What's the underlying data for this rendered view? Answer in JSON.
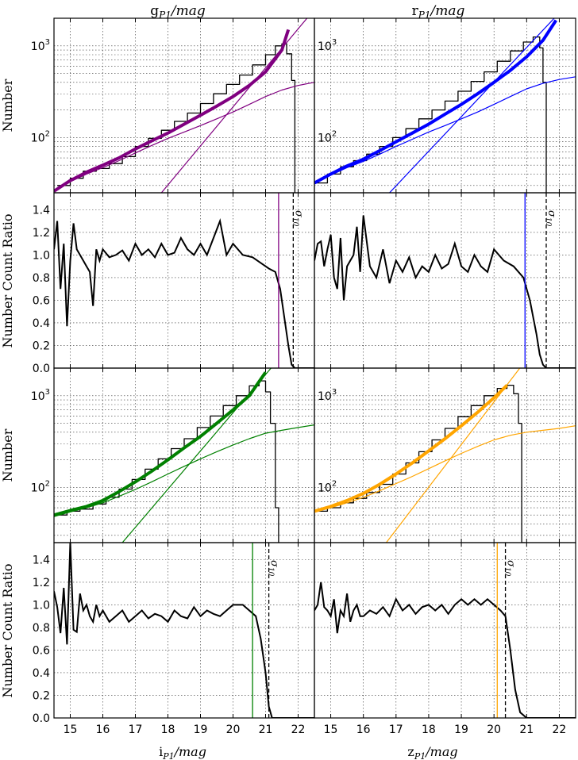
{
  "figure": {
    "col_titles": [
      {
        "main": "g",
        "sub": "P1",
        "unit": "/mag"
      },
      {
        "main": "r",
        "sub": "P1",
        "unit": "/mag"
      }
    ],
    "col_xlabels": [
      {
        "main": "i",
        "sub": "P1",
        "unit": "/mag"
      },
      {
        "main": "z",
        "sub": "P1",
        "unit": "/mag"
      }
    ],
    "ylabel_counts": "Number",
    "ylabel_ratio": "Number Count Ratio",
    "sigma_label": "σ",
    "sigma_sub": "10"
  },
  "chart_data": [
    {
      "type": "line",
      "band": "g",
      "scale": "log",
      "ylim": [
        25,
        2000
      ],
      "xlim": [
        14.5,
        22.5
      ],
      "x_ticks": [
        15,
        16,
        17,
        18,
        19,
        20,
        21,
        22
      ],
      "y_tick_labels": [
        "10^2",
        "10^3"
      ],
      "color": "#800080",
      "grid": true,
      "series": [
        {
          "style": "histogram",
          "color": "#000000",
          "x": [
            14.6,
            15.0,
            15.4,
            15.8,
            16.2,
            16.6,
            17.0,
            17.4,
            17.8,
            18.2,
            18.6,
            19.0,
            19.4,
            19.8,
            20.2,
            20.6,
            21.0,
            21.3,
            21.5,
            21.65,
            21.8,
            21.9
          ],
          "values": [
            30,
            36,
            43,
            46,
            52,
            62,
            80,
            98,
            120,
            150,
            185,
            235,
            300,
            380,
            480,
            620,
            800,
            1000,
            1050,
            820,
            420,
            20
          ]
        },
        {
          "style": "thick",
          "color": "#800080",
          "x": [
            14.5,
            15.0,
            15.5,
            16.0,
            16.5,
            17.0,
            17.5,
            18.0,
            18.5,
            19.0,
            19.5,
            20.0,
            20.5,
            21.0,
            21.5,
            21.7
          ],
          "values": [
            26,
            34,
            42,
            50,
            60,
            75,
            92,
            112,
            140,
            175,
            220,
            280,
            370,
            520,
            900,
            1500
          ]
        },
        {
          "style": "thin",
          "color": "#800080",
          "x": [
            14.5,
            15.0,
            15.5,
            16.0,
            16.5,
            17.0,
            17.5,
            18.0,
            18.5,
            19.0,
            19.5,
            20.0,
            20.5,
            21.0,
            21.5,
            22.0,
            22.5
          ],
          "values": [
            26,
            33,
            40,
            47,
            56,
            68,
            82,
            98,
            115,
            135,
            160,
            190,
            230,
            280,
            330,
            370,
            400
          ]
        },
        {
          "style": "thin",
          "color": "#800080",
          "x": [
            17.8,
            22.5
          ],
          "values": [
            25,
            2500
          ]
        }
      ]
    },
    {
      "type": "line",
      "band": "g",
      "ylim": [
        0,
        1.55
      ],
      "xlim": [
        14.5,
        22.5
      ],
      "y_ticks": [
        0.0,
        0.2,
        0.4,
        0.6,
        0.8,
        1.0,
        1.2,
        1.4
      ],
      "grid": true,
      "x": [
        14.5,
        14.6,
        14.7,
        14.8,
        14.9,
        15.0,
        15.1,
        15.2,
        15.3,
        15.4,
        15.5,
        15.6,
        15.7,
        15.8,
        15.9,
        16.0,
        16.2,
        16.4,
        16.6,
        16.8,
        17.0,
        17.2,
        17.4,
        17.6,
        17.8,
        18.0,
        18.2,
        18.4,
        18.6,
        18.8,
        19.0,
        19.2,
        19.4,
        19.6,
        19.8,
        20.0,
        20.3,
        20.6,
        20.9,
        21.1,
        21.3,
        21.45,
        21.6,
        21.7,
        21.8,
        21.9,
        22.0,
        22.5
      ],
      "values": [
        1.05,
        1.3,
        0.7,
        1.1,
        0.37,
        0.95,
        1.28,
        1.05,
        1.0,
        0.95,
        0.9,
        0.85,
        0.55,
        1.05,
        0.95,
        1.05,
        0.98,
        1.0,
        1.04,
        0.95,
        1.1,
        1.0,
        1.05,
        0.98,
        1.1,
        1.0,
        1.02,
        1.15,
        1.05,
        1.0,
        1.1,
        1.0,
        1.15,
        1.3,
        1.0,
        1.1,
        1.0,
        0.98,
        0.92,
        0.88,
        0.85,
        0.7,
        0.4,
        0.2,
        0.03,
        0.0,
        0.0,
        0.0
      ],
      "completeness_mag": 21.4,
      "sigma10_mag": 21.85,
      "completeness_color": "#800080"
    },
    {
      "type": "line",
      "band": "r",
      "scale": "log",
      "ylim": [
        25,
        2000
      ],
      "xlim": [
        14.5,
        22.5
      ],
      "x_ticks": [
        15,
        16,
        17,
        18,
        19,
        20,
        21,
        22
      ],
      "color": "#0000ff",
      "grid": true,
      "series": [
        {
          "style": "histogram",
          "color": "#000000",
          "x": [
            14.5,
            14.9,
            15.3,
            15.7,
            16.1,
            16.5,
            16.9,
            17.3,
            17.7,
            18.1,
            18.5,
            18.9,
            19.3,
            19.7,
            20.1,
            20.5,
            20.9,
            21.2,
            21.4,
            21.5,
            21.6
          ],
          "values": [
            32,
            40,
            48,
            56,
            66,
            80,
            100,
            125,
            160,
            200,
            250,
            320,
            410,
            520,
            680,
            880,
            1100,
            1250,
            950,
            400,
            20
          ]
        },
        {
          "style": "thick",
          "color": "#0000ff",
          "x": [
            14.5,
            15.0,
            15.5,
            16.0,
            16.5,
            17.0,
            17.5,
            18.0,
            18.5,
            19.0,
            19.5,
            20.0,
            20.5,
            21.0,
            21.5,
            21.9
          ],
          "values": [
            32,
            40,
            49,
            58,
            72,
            90,
            112,
            140,
            180,
            230,
            300,
            400,
            540,
            760,
            1150,
            1900
          ]
        },
        {
          "style": "thin",
          "color": "#0000ff",
          "x": [
            14.5,
            15.0,
            15.5,
            16.0,
            16.5,
            17.0,
            17.5,
            18.0,
            18.5,
            19.0,
            19.5,
            20.0,
            20.5,
            21.0,
            21.5,
            22.0,
            22.5
          ],
          "values": [
            32,
            39,
            47,
            55,
            66,
            80,
            96,
            115,
            135,
            160,
            190,
            230,
            280,
            340,
            390,
            430,
            460
          ]
        },
        {
          "style": "thin",
          "color": "#0000ff",
          "x": [
            16.8,
            22.1
          ],
          "values": [
            25,
            2500
          ]
        }
      ]
    },
    {
      "type": "line",
      "band": "r",
      "ylim": [
        0,
        1.55
      ],
      "xlim": [
        14.5,
        22.5
      ],
      "grid": true,
      "x": [
        14.5,
        14.6,
        14.7,
        14.8,
        14.9,
        15.0,
        15.1,
        15.2,
        15.3,
        15.4,
        15.5,
        15.6,
        15.7,
        15.8,
        15.9,
        16.0,
        16.2,
        16.4,
        16.6,
        16.8,
        17.0,
        17.2,
        17.4,
        17.6,
        17.8,
        18.0,
        18.2,
        18.4,
        18.6,
        18.8,
        19.0,
        19.2,
        19.4,
        19.6,
        19.8,
        20.0,
        20.3,
        20.6,
        20.9,
        21.1,
        21.3,
        21.4,
        21.5,
        21.6,
        22.0,
        22.5
      ],
      "values": [
        0.95,
        1.1,
        1.12,
        0.9,
        1.05,
        1.18,
        0.8,
        0.7,
        1.15,
        0.6,
        0.9,
        0.95,
        1.0,
        1.25,
        0.85,
        1.35,
        0.9,
        0.8,
        1.05,
        0.75,
        0.95,
        0.85,
        0.98,
        0.8,
        0.9,
        0.85,
        1.0,
        0.88,
        0.92,
        1.1,
        0.9,
        0.85,
        1.0,
        0.9,
        0.85,
        1.05,
        0.95,
        0.9,
        0.8,
        0.6,
        0.3,
        0.12,
        0.03,
        0.0,
        0.0,
        0.0
      ],
      "completeness_mag": 20.95,
      "sigma10_mag": 21.6,
      "completeness_color": "#0000ff"
    },
    {
      "type": "line",
      "band": "i",
      "scale": "log",
      "ylim": [
        25,
        2000
      ],
      "xlim": [
        14.5,
        22.5
      ],
      "color": "#008000",
      "grid": true,
      "series": [
        {
          "style": "histogram",
          "color": "#000000",
          "x": [
            14.5,
            14.9,
            15.3,
            15.7,
            16.1,
            16.5,
            16.9,
            17.3,
            17.7,
            18.1,
            18.5,
            18.9,
            19.3,
            19.7,
            20.1,
            20.5,
            20.8,
            21.0,
            21.15,
            21.3,
            21.4
          ],
          "values": [
            50,
            55,
            58,
            66,
            78,
            96,
            122,
            158,
            205,
            265,
            340,
            450,
            600,
            780,
            1000,
            1280,
            1450,
            1100,
            500,
            60,
            20
          ]
        },
        {
          "style": "thick",
          "color": "#008000",
          "x": [
            14.5,
            15.0,
            15.5,
            16.0,
            16.5,
            17.0,
            17.5,
            18.0,
            18.5,
            19.0,
            19.5,
            20.0,
            20.5,
            21.0
          ],
          "values": [
            50,
            56,
            62,
            72,
            90,
            115,
            150,
            200,
            270,
            360,
            500,
            700,
            1000,
            1800
          ]
        },
        {
          "style": "thin",
          "color": "#008000",
          "x": [
            14.5,
            15.0,
            15.5,
            16.0,
            16.5,
            17.0,
            17.5,
            18.0,
            18.5,
            19.0,
            19.5,
            20.0,
            20.5,
            21.0,
            21.5,
            22.0,
            22.5
          ],
          "values": [
            48,
            54,
            60,
            68,
            80,
            95,
            115,
            140,
            170,
            205,
            245,
            290,
            340,
            390,
            420,
            450,
            480
          ]
        },
        {
          "style": "thin",
          "color": "#008000",
          "x": [
            16.6,
            21.4
          ],
          "values": [
            25,
            2500
          ]
        }
      ]
    },
    {
      "type": "line",
      "band": "i",
      "ylim": [
        0,
        1.55
      ],
      "xlim": [
        14.5,
        22.5
      ],
      "grid": true,
      "x": [
        14.5,
        14.6,
        14.7,
        14.8,
        14.9,
        15.0,
        15.1,
        15.2,
        15.3,
        15.4,
        15.5,
        15.6,
        15.7,
        15.8,
        15.9,
        16.0,
        16.2,
        16.4,
        16.6,
        16.8,
        17.0,
        17.2,
        17.4,
        17.6,
        17.8,
        18.0,
        18.2,
        18.4,
        18.6,
        18.8,
        19.0,
        19.2,
        19.4,
        19.6,
        19.8,
        20.0,
        20.3,
        20.5,
        20.7,
        20.85,
        21.0,
        21.1,
        21.2,
        21.5,
        22.5
      ],
      "values": [
        1.12,
        0.98,
        0.75,
        1.15,
        0.65,
        1.55,
        0.78,
        0.76,
        1.1,
        0.95,
        1.0,
        0.9,
        0.85,
        1.0,
        0.9,
        0.95,
        0.85,
        0.9,
        0.95,
        0.85,
        0.9,
        0.95,
        0.88,
        0.92,
        0.9,
        0.85,
        0.95,
        0.9,
        0.88,
        0.98,
        0.9,
        0.95,
        0.92,
        0.9,
        0.95,
        1.0,
        1.0,
        0.95,
        0.9,
        0.7,
        0.4,
        0.1,
        0.0,
        0.0,
        0.0
      ],
      "completeness_mag": 20.6,
      "sigma10_mag": 21.1,
      "completeness_color": "#008000"
    },
    {
      "type": "line",
      "band": "z",
      "scale": "log",
      "ylim": [
        25,
        2000
      ],
      "xlim": [
        14.5,
        22.5
      ],
      "color": "#ffa500",
      "grid": true,
      "series": [
        {
          "style": "histogram",
          "color": "#000000",
          "x": [
            14.5,
            14.9,
            15.3,
            15.7,
            16.1,
            16.5,
            16.9,
            17.3,
            17.7,
            18.1,
            18.5,
            18.9,
            19.3,
            19.7,
            20.1,
            20.4,
            20.6,
            20.75,
            20.85
          ],
          "values": [
            55,
            60,
            68,
            76,
            88,
            108,
            140,
            185,
            245,
            330,
            440,
            590,
            780,
            1000,
            1200,
            1300,
            1050,
            500,
            25
          ]
        },
        {
          "style": "thick",
          "color": "#ffa500",
          "x": [
            14.5,
            15.0,
            15.5,
            16.0,
            16.5,
            17.0,
            17.5,
            18.0,
            18.5,
            19.0,
            19.5,
            20.0,
            20.4
          ],
          "values": [
            55,
            62,
            72,
            86,
            108,
            140,
            185,
            250,
            340,
            470,
            660,
            950,
            1300
          ]
        },
        {
          "style": "thin",
          "color": "#ffa500",
          "x": [
            14.5,
            15.0,
            15.5,
            16.0,
            16.5,
            17.0,
            17.5,
            18.0,
            18.5,
            19.0,
            19.5,
            20.0,
            20.5,
            21.0,
            21.5,
            22.0,
            22.5
          ],
          "values": [
            54,
            60,
            68,
            78,
            92,
            110,
            132,
            160,
            195,
            235,
            280,
            330,
            370,
            400,
            420,
            440,
            470
          ]
        },
        {
          "style": "thin",
          "color": "#ffa500",
          "x": [
            16.7,
            21.0
          ],
          "values": [
            25,
            2500
          ]
        }
      ]
    },
    {
      "type": "line",
      "band": "z",
      "ylim": [
        0,
        1.55
      ],
      "xlim": [
        14.5,
        22.5
      ],
      "grid": true,
      "x": [
        14.5,
        14.6,
        14.7,
        14.8,
        14.9,
        15.0,
        15.1,
        15.2,
        15.3,
        15.4,
        15.5,
        15.6,
        15.7,
        15.8,
        15.9,
        16.0,
        16.2,
        16.4,
        16.6,
        16.8,
        17.0,
        17.2,
        17.4,
        17.6,
        17.8,
        18.0,
        18.2,
        18.4,
        18.6,
        18.8,
        19.0,
        19.2,
        19.4,
        19.6,
        19.8,
        20.0,
        20.2,
        20.35,
        20.5,
        20.65,
        20.8,
        21.0,
        22.5
      ],
      "values": [
        0.95,
        1.0,
        1.2,
        0.98,
        0.95,
        0.9,
        1.05,
        0.75,
        0.95,
        0.9,
        1.1,
        0.85,
        0.95,
        1.0,
        0.9,
        0.9,
        0.95,
        0.92,
        0.98,
        0.9,
        1.05,
        0.95,
        1.0,
        0.92,
        0.98,
        1.0,
        0.95,
        1.0,
        0.92,
        1.0,
        1.05,
        1.0,
        1.05,
        1.0,
        1.05,
        1.0,
        0.95,
        0.9,
        0.6,
        0.25,
        0.05,
        0.0,
        0.0
      ],
      "completeness_mag": 20.1,
      "sigma10_mag": 20.35,
      "completeness_color": "#ffa500"
    }
  ]
}
